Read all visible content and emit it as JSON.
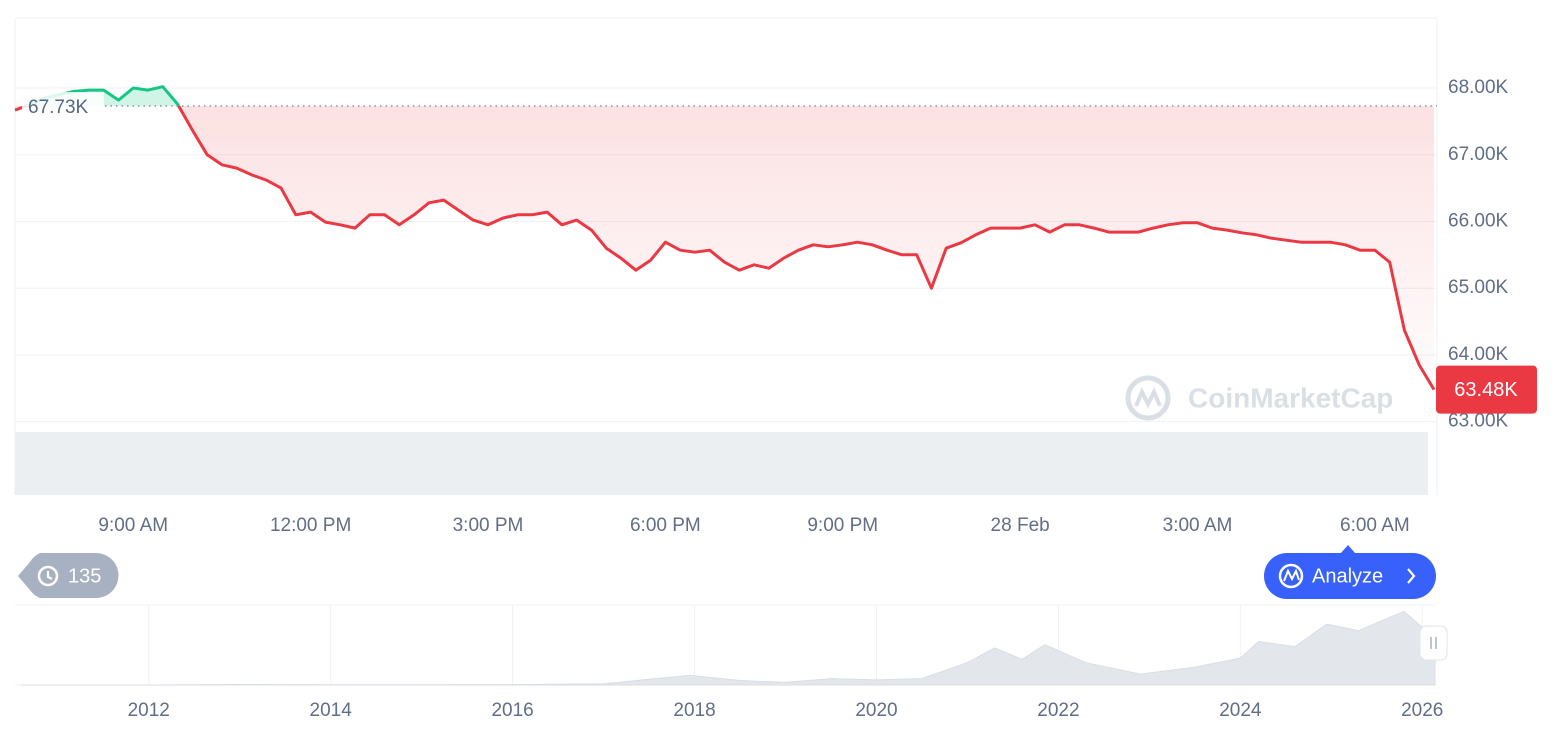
{
  "chart_data": [
    {
      "type": "line",
      "categories": [
        null,
        null,
        null,
        null,
        null,
        null,
        null,
        null,
        "9:00 AM",
        null,
        null,
        null,
        null,
        null,
        null,
        null,
        null,
        null,
        null,
        null,
        "12:00 PM",
        null,
        null,
        null,
        null,
        null,
        null,
        null,
        null,
        null,
        null,
        null,
        "3:00 PM",
        null,
        null,
        null,
        null,
        null,
        null,
        null,
        null,
        null,
        null,
        null,
        "6:00 PM",
        null,
        null,
        null,
        null,
        null,
        null,
        null,
        null,
        null,
        null,
        null,
        "9:00 PM",
        null,
        null,
        null,
        null,
        null,
        null,
        null,
        null,
        null,
        null,
        null,
        "28 Feb",
        null,
        null,
        null,
        null,
        null,
        null,
        null,
        null,
        null,
        null,
        null,
        "3:00 AM",
        null,
        null,
        null,
        null,
        null,
        null,
        null,
        null,
        null,
        null,
        null,
        "6:00 AM",
        null,
        null,
        null,
        null
      ],
      "values": [
        67670,
        67750,
        67850,
        67900,
        67950,
        67970,
        67970,
        67820,
        68000,
        67970,
        68020,
        67760,
        67370,
        67000,
        66850,
        66800,
        66700,
        66620,
        66500,
        66100,
        66140,
        65990,
        65950,
        65900,
        66100,
        66100,
        65950,
        66100,
        66280,
        66320,
        66170,
        66020,
        65950,
        66050,
        66100,
        66100,
        66140,
        65950,
        66020,
        65870,
        65600,
        65450,
        65270,
        65420,
        65690,
        65570,
        65540,
        65570,
        65390,
        65270,
        65350,
        65300,
        65450,
        65570,
        65650,
        65620,
        65650,
        65690,
        65650,
        65570,
        65500,
        65500,
        65000,
        65600,
        65680,
        65800,
        65900,
        65900,
        65900,
        65950,
        65840,
        65950,
        65950,
        65900,
        65840,
        65840,
        65840,
        65900,
        65950,
        65980,
        65980,
        65900,
        65870,
        65830,
        65800,
        65750,
        65720,
        65690,
        65690,
        65690,
        65650,
        65570,
        65570,
        65390,
        64370,
        63850,
        63480
      ],
      "value_labels": [
        null,
        null,
        null,
        null,
        null,
        null,
        null,
        null,
        null,
        null,
        null,
        null,
        null,
        null,
        null,
        null,
        null,
        null,
        null,
        null,
        null,
        null,
        null,
        null,
        null,
        null,
        null,
        null,
        null,
        null,
        null,
        null,
        null,
        null,
        null,
        null,
        null,
        null,
        null,
        null,
        null,
        null,
        null,
        null,
        null,
        null,
        null,
        null,
        null,
        null,
        null,
        null,
        null,
        null,
        null,
        null,
        null,
        null,
        null,
        null,
        null,
        null,
        null,
        null,
        null,
        null,
        null,
        null,
        null,
        null,
        null,
        null,
        null,
        null,
        null,
        null,
        null,
        null,
        null,
        null,
        null,
        null,
        null,
        null,
        null,
        null,
        null,
        null,
        null,
        null,
        null,
        null,
        null,
        null,
        null,
        null,
        "63.48K"
      ],
      "color": "#ea3943",
      "color_above": "#16c784",
      "reference": {
        "value": 67730,
        "label": "67.73K"
      },
      "ylim": [
        61900,
        69050
      ],
      "yticks": [
        {
          "value": 63000,
          "label": "63.00K"
        },
        {
          "value": 64000,
          "label": "64.00K"
        },
        {
          "value": 65000,
          "label": "65.00K"
        },
        {
          "value": 66000,
          "label": "66.00K"
        },
        {
          "value": 67000,
          "label": "67.00K"
        },
        {
          "value": 68000,
          "label": "68.00K"
        }
      ],
      "grid": true
    },
    {
      "type": "area",
      "x": [
        2010.6,
        2012,
        2013,
        2014,
        2015,
        2016,
        2017,
        2017.95,
        2018.5,
        2019,
        2019.5,
        2020,
        2020.5,
        2021.0,
        2021.3,
        2021.6,
        2021.85,
        2022.3,
        2022.9,
        2023.5,
        2024.0,
        2024.2,
        2024.6,
        2024.95,
        2025.3,
        2025.8,
        2026.0,
        2026.14
      ],
      "values": [
        0,
        10,
        800,
        400,
        300,
        700,
        2000,
        15000,
        7000,
        4000,
        10000,
        8000,
        10000,
        35000,
        58000,
        40000,
        63000,
        35000,
        17000,
        28000,
        42000,
        68000,
        60000,
        95000,
        85000,
        115000,
        90000,
        67000
      ],
      "color": "#e3e7ec",
      "xlim": [
        2010.53,
        2026.14
      ],
      "ylim": [
        0,
        125000
      ],
      "xticks": [
        2012,
        2014,
        2016,
        2018,
        2020,
        2022,
        2024,
        2026
      ],
      "grid": true
    }
  ],
  "ui": {
    "history_count": "135",
    "analyze_button": "Analyze",
    "watermark": "CoinMarketCap"
  }
}
